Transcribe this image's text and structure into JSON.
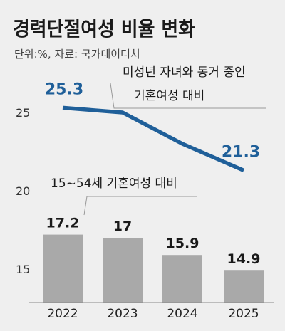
{
  "header": {
    "title": "경력단절여성 비율 변화",
    "subtitle": "단위:%, 자료: 국가데이터처"
  },
  "colors": {
    "background": "#efefef",
    "line": "#1f5f99",
    "bar": "#a9a9a9",
    "text": "#1a1a1a",
    "callout": "#999999"
  },
  "chart_data": {
    "type": "line+bar",
    "categories": [
      "2022",
      "2023",
      "2024",
      "2025"
    ],
    "yaxis": {
      "ticks": [
        25,
        20,
        15
      ]
    },
    "series": [
      {
        "name": "미성년 자녀와 동거 중인 기혼여성 대비",
        "type": "line",
        "values": [
          25.3,
          25.0,
          23.0,
          21.3
        ],
        "labels": [
          "25.3",
          "",
          "",
          "21.3"
        ]
      },
      {
        "name": "15~54세 기혼여성 대비",
        "type": "bar",
        "values": [
          17.2,
          17,
          15.9,
          14.9
        ],
        "labels": [
          "17.2",
          "17",
          "15.9",
          "14.9"
        ]
      }
    ],
    "annotations": {
      "line_callout": [
        "미성년 자녀와 동거 중인",
        "기혼여성 대비"
      ],
      "bar_callout": "15~54세 기혼여성 대비"
    }
  }
}
